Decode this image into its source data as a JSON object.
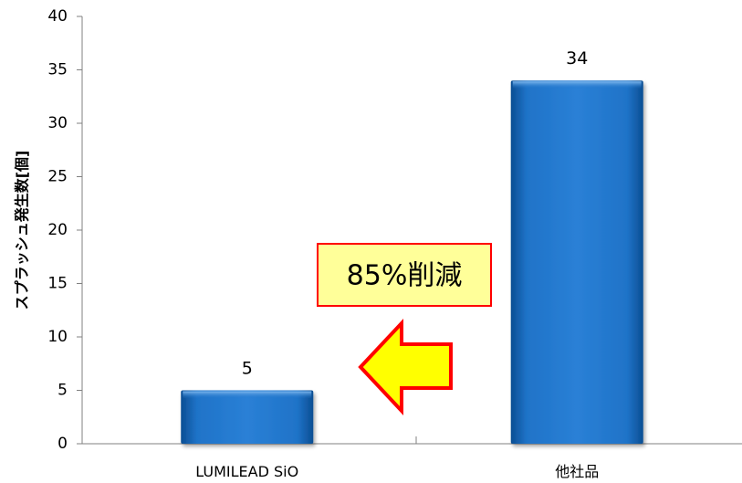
{
  "chart_data": {
    "type": "bar",
    "categories": [
      "LUMILEAD SiO",
      "他社品"
    ],
    "values": [
      5,
      34
    ],
    "data_labels": [
      "5",
      "34"
    ],
    "title": "",
    "xlabel": "",
    "ylabel": "スプラッシュ発生数[個]",
    "ylim": [
      0,
      40
    ],
    "yticks": [
      0,
      5,
      10,
      15,
      20,
      25,
      30,
      35,
      40
    ],
    "grid": false,
    "legend": "none",
    "bar_color": "#1F6FBF",
    "annotation": {
      "text": "85%削減",
      "box_fill": "#FFFF99",
      "box_border": "#FF0000",
      "arrow_fill": "#FFFF00",
      "arrow_border": "#FF0000",
      "arrow_direction": "left"
    }
  }
}
